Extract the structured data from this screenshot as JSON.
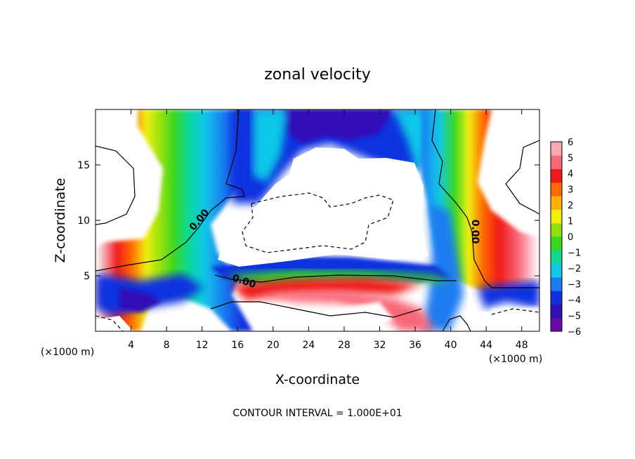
{
  "chart_data": {
    "type": "heatmap",
    "title": "zonal velocity",
    "xlabel": "X-coordinate",
    "ylabel": "Z-coordinate",
    "x_units": "(×1000 m)",
    "x_units_right": "(×1000 m)",
    "footer": "CONTOUR INTERVAL = 1.000E+01",
    "xlim": [
      0,
      50
    ],
    "ylim": [
      0,
      20
    ],
    "x_ticks": [
      4,
      8,
      12,
      16,
      20,
      24,
      28,
      32,
      36,
      40,
      44,
      48
    ],
    "y_ticks": [
      5,
      10,
      15
    ],
    "colorbar": {
      "min": -6,
      "max": 6,
      "ticks": [
        6,
        5,
        4,
        3,
        2,
        1,
        0,
        -1,
        -2,
        -3,
        -4,
        -5,
        -6
      ],
      "colors": [
        "#6a0aa8",
        "#3010b8",
        "#1030e0",
        "#1a7cf0",
        "#10c8e8",
        "#10d890",
        "#38d820",
        "#90e010",
        "#f0f010",
        "#ffb000",
        "#ff6a00",
        "#f01818",
        "#f86878",
        "#f8a8b0"
      ]
    },
    "contour_labels": [
      "0.00",
      "0.00",
      "0.00"
    ],
    "grid": false,
    "legend_position": "right"
  }
}
